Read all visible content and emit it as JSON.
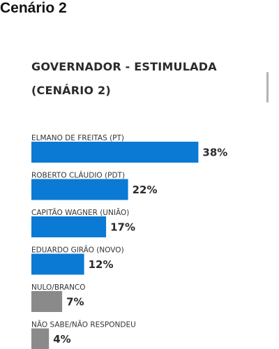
{
  "page": {
    "heading": "Cenário 2"
  },
  "chart_data": {
    "type": "bar",
    "orientation": "horizontal",
    "title": "GOVERNADOR - ESTIMULADA",
    "subtitle": "(CENÁRIO 2)",
    "categories": [
      "ELMANO DE FREITAS (PT)",
      "ROBERTO CLÁUDIO (PDT)",
      "CAPITÃO WAGNER (UNIÃO)",
      "EDUARDO GIRÃO (NOVO)",
      "NULO/BRANCO",
      "NÃO SABE/NÃO RESPONDEU"
    ],
    "values": [
      38,
      22,
      17,
      12,
      7,
      4
    ],
    "value_labels": [
      "38%",
      "22%",
      "17%",
      "12%",
      "7%",
      "4%"
    ],
    "unit": "%",
    "bar_colors": [
      "#0a7ad4",
      "#0a7ad4",
      "#0a7ad4",
      "#0a7ad4",
      "#8a8a8a",
      "#8a8a8a"
    ],
    "bar_kinds": [
      "candidate",
      "candidate",
      "candidate",
      "candidate",
      "other",
      "other"
    ],
    "xlim": [
      0,
      100
    ],
    "grid": false,
    "legend": "none"
  }
}
